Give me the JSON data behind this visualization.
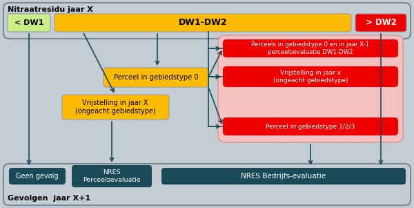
{
  "bg_outer": "#c5cdd4",
  "color_green_light": "#ccee88",
  "color_yellow": "#ffbb00",
  "color_red_bright": "#ee0000",
  "color_pink_bg": "#f5c0c0",
  "color_dark_teal": "#1a4a58",
  "color_white": "#ffffff",
  "color_black": "#000000",
  "color_border": "#888888",
  "title_top": "Nitraatresidu jaar X",
  "title_bottom": "Gevolgen  jaar X+1",
  "label_dw1": "< DW1",
  "label_dw1dw2": "DW1-DW2",
  "label_dw2": "> DW2",
  "label_perceel0": "Perceel in gebiedstype 0",
  "label_vrijstelling": "Vrijstelling in jaar X\n(ongeacht gebiedstype)",
  "label_geen_gevolg": "Geen gevolg",
  "label_nres_perc": "NRES\nPerceelsevaluatie",
  "label_nres_bedr": "NRES Bedrijfs-evaluatie",
  "label_red1": "Perceels in gebiedstype 0 en in jaar X-1\nperceelsevaluatie DW1-DW2",
  "label_red2": "Vrijstelling in jaar x\n(ongeacht gebiedstype)",
  "label_red3": "Perceel in gebiedstype 1/2/3",
  "arrow_color": "#1a4a58"
}
